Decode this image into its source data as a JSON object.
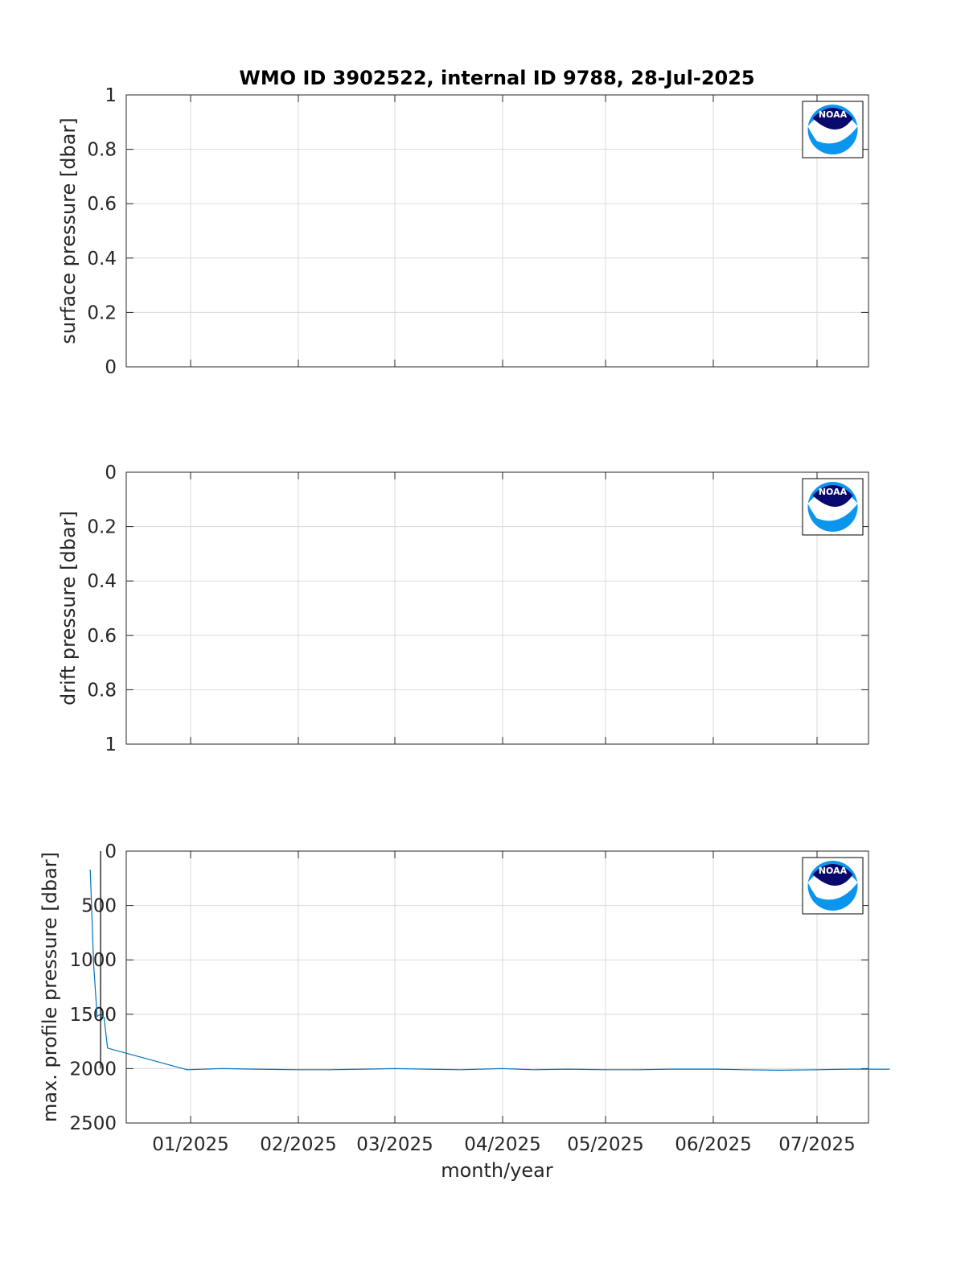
{
  "title": "WMO ID 3902522, internal ID 9788, 28-Jul-2025",
  "logo": {
    "text": "NOAA",
    "colors": {
      "dark": "#0a0a6e",
      "light": "#0c95ec"
    }
  },
  "colors": {
    "series": "#0072bd",
    "grid": "#d9d9d9",
    "axis": "#262626",
    "marker": "#000000"
  },
  "x_axis": {
    "label": "month/year",
    "ticks": [
      "01/2025",
      "02/2025",
      "03/2025",
      "04/2025",
      "05/2025",
      "06/2025",
      "07/2025"
    ]
  },
  "chart_data": [
    {
      "type": "line",
      "ylabel": "surface pressure [dbar]",
      "ylim": [
        0,
        1
      ],
      "y_reversed": false,
      "yticks": [
        "0",
        "0.2",
        "0.4",
        "0.6",
        "0.8",
        "1"
      ],
      "series": []
    },
    {
      "type": "line",
      "ylabel": "drift pressure [dbar]",
      "ylim": [
        0,
        1
      ],
      "y_reversed": true,
      "yticks": [
        "0",
        "0.2",
        "0.4",
        "0.6",
        "0.8",
        "1"
      ],
      "series": []
    },
    {
      "type": "line",
      "ylabel": "max. profile pressure [dbar]",
      "ylim": [
        0,
        2500
      ],
      "y_reversed": true,
      "yticks": [
        "0",
        "500",
        "1000",
        "1500",
        "2000",
        "2500"
      ],
      "xlim": [
        "2024-12-01",
        "2025-07-22"
      ],
      "vline": {
        "x": "2024-12-06",
        "y": [
          0,
          2000
        ]
      },
      "series": [
        {
          "x": [
            "2024-12-03",
            "2024-12-04",
            "2024-12-05",
            "2024-12-06",
            "2024-12-07",
            "2024-12-08",
            "2024-12-09",
            "2024-12-31",
            "2025-01-10",
            "2025-01-20",
            "2025-02-01",
            "2025-02-10",
            "2025-02-20",
            "2025-03-01",
            "2025-03-10",
            "2025-03-20",
            "2025-04-01",
            "2025-04-10",
            "2025-04-20",
            "2025-05-01",
            "2025-05-10",
            "2025-05-20",
            "2025-06-01",
            "2025-06-10",
            "2025-06-20",
            "2025-07-01",
            "2025-07-10",
            "2025-07-22"
          ],
          "y": [
            170,
            1050,
            1520,
            1500,
            1530,
            1810,
            1820,
            2010,
            2000,
            2005,
            2010,
            2010,
            2005,
            2000,
            2005,
            2010,
            2000,
            2010,
            2005,
            2010,
            2010,
            2005,
            2005,
            2010,
            2015,
            2010,
            2005,
            2005
          ]
        }
      ]
    }
  ]
}
